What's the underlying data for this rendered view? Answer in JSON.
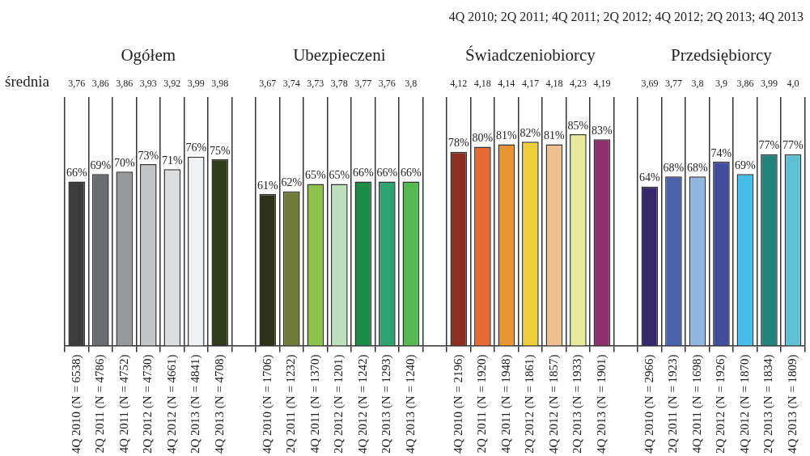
{
  "chart_data": {
    "type": "bar",
    "subtitle": "4Q 2010; 2Q 2011; 4Q 2011; 2Q 2012; 4Q 2012; 2Q 2013; 4Q 2013",
    "categories": [
      "4Q 2010 (N = 6538)",
      "2Q 2011 (N = 4786)",
      "4Q 2011 (N = 4752)",
      "2Q 2012 (N = 4730)",
      "4Q 2012 (N = 4661)",
      "2Q 2013 (N = 4841)",
      "4Q 2013 (N = 4708)",
      null,
      "4Q 2010 (N = 1706)",
      "2Q 2011 (N = 1232)",
      "4Q 2011 (N = 1370)",
      "2Q 2012 (N = 1201)",
      "4Q 2012 (N = 1242)",
      "2Q 2013 (N = 1293)",
      "4Q 2013 (N = 1240)",
      null,
      "4Q 2010 (N = 2196)",
      "2Q 2011 (N = 1920)",
      "4Q 2011 (N = 1948)",
      "2Q 2012 (N = 1861)",
      "4Q 2012 (N = 1857)",
      "2Q 2013 (N = 1933)",
      "4Q 2013 (N = 1901)",
      null,
      "4Q 2010 (N = 2966)",
      "2Q 2011 (N = 1923)",
      "4Q 2011 (N = 1698)",
      "2Q 2012 (N = 1926)",
      "4Q 2012 (N = 1870)",
      "2Q 2013 (N = 1834)",
      "4Q 2013 (N = 1809)"
    ],
    "values": [
      66,
      69,
      70,
      73,
      71,
      76,
      75,
      null,
      61,
      62,
      65,
      65,
      66,
      66,
      66,
      null,
      78,
      80,
      81,
      82,
      81,
      85,
      83,
      null,
      64,
      68,
      68,
      74,
      69,
      77,
      77
    ],
    "value_labels": [
      "66%",
      "69%",
      "70%",
      "73%",
      "71%",
      "76%",
      "75%",
      null,
      "61%",
      "62%",
      "65%",
      "65%",
      "66%",
      "66%",
      "66%",
      null,
      "78%",
      "80%",
      "81%",
      "82%",
      "81%",
      "85%",
      "83%",
      null,
      "64%",
      "68%",
      "68%",
      "74%",
      "69%",
      "77%",
      "77%"
    ],
    "colors": [
      "#3d3d3d",
      "#6b6c70",
      "#97989c",
      "#c4c5c7",
      "#dcdddf",
      "#f0f1f3",
      "#333a1c",
      null,
      "#2d3118",
      "#717b38",
      "#8bc34a",
      "#bcdfbe",
      "#1d8a47",
      "#2ea274",
      "#56b94f",
      null,
      "#8a2f22",
      "#e56a35",
      "#ea9332",
      "#eccd3a",
      "#f0bf90",
      "#e6ea9a",
      "#8c2f6c",
      null,
      "#35296b",
      "#4a62aa",
      "#8fb7e0",
      "#414c9e",
      "#48bce8",
      "#23817e",
      "#60c0d3"
    ],
    "ylim": [
      0,
      100
    ],
    "tick_labels": "x",
    "grid": "x",
    "legend": false,
    "annotations": [
      "średnia",
      "Ogółem",
      "Ubezpieczeni",
      "Świadczeniobiorcy",
      "Przedsiębiorcy",
      "3,76",
      "3,86",
      "3,86",
      "3,93",
      "3,92",
      "3,99",
      "3,98",
      "3,67",
      "3,74",
      "3,73",
      "3,78",
      "3,77",
      "3,76",
      "3,8",
      "4,12",
      "4,18",
      "4,14",
      "4,17",
      "4,18",
      "4,23",
      "4,19",
      "3,69",
      "3,77",
      "3,8",
      "3,9",
      "3,86",
      "3,99",
      "4,0"
    ]
  }
}
